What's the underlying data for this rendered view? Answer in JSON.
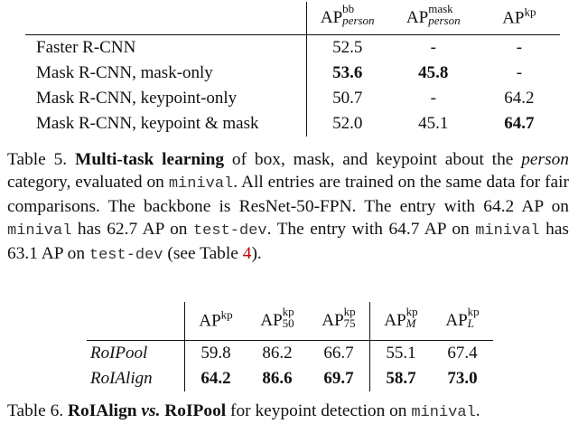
{
  "table5": {
    "headers": {
      "c1": {
        "base": "AP",
        "sup": "bb",
        "sub": "person"
      },
      "c2": {
        "base": "AP",
        "sup": "mask",
        "sub": "person"
      },
      "c3": {
        "base": "AP",
        "sup": "kp"
      }
    },
    "rows": [
      {
        "label": "Faster R-CNN",
        "c1": "52.5",
        "c2": "-",
        "c3": "-"
      },
      {
        "label": "Mask R-CNN, mask-only",
        "c1": "53.6",
        "c2": "45.8",
        "c3": "-"
      },
      {
        "label": "Mask R-CNN, keypoint-only",
        "c1": "50.7",
        "c2": "-",
        "c3": "64.2"
      },
      {
        "label": "Mask R-CNN, keypoint & mask",
        "c1": "52.0",
        "c2": "45.1",
        "c3": "64.7"
      }
    ],
    "caption": {
      "prefix": "Table 5.",
      "bold": "Multi-task learning",
      "t1": "of box, mask, and keypoint about the",
      "italic": "person",
      "t2": "category, evaluated on",
      "code1": "minival",
      "t3": ". All entries are trained on the same data for fair comparisons. The backbone is ResNet-50-FPN. The entry with 64.2 AP on",
      "code2": "minival",
      "t4": "has 62.7 AP on",
      "code3": "test-dev",
      "t5": ". The entry with 64.7 AP on",
      "code4": "minival",
      "t6": "has 63.1 AP on",
      "code5": "test-dev",
      "t7": "(see Table",
      "ref": "4",
      "t8": ")."
    }
  },
  "table6": {
    "headers": [
      {
        "base": "AP",
        "sup": "kp",
        "sub": ""
      },
      {
        "base": "AP",
        "sup": "kp",
        "sub": "50"
      },
      {
        "base": "AP",
        "sup": "kp",
        "sub": "75"
      },
      {
        "base": "AP",
        "sup": "kp",
        "sub": "M"
      },
      {
        "base": "AP",
        "sup": "kp",
        "sub": "L"
      }
    ],
    "rows": [
      {
        "label": "RoIPool",
        "values": [
          "59.8",
          "86.2",
          "66.7",
          "55.1",
          "67.4"
        ]
      },
      {
        "label": "RoIAlign",
        "values": [
          "64.2",
          "86.6",
          "69.7",
          "58.7",
          "73.0"
        ]
      }
    ],
    "caption": {
      "prefix": "Table 6.",
      "bold1": "RoIAlign",
      "italic": "vs.",
      "bold2": "RoIPool",
      "t1": "for keypoint detection on",
      "code": "minival",
      "t2": "."
    }
  }
}
